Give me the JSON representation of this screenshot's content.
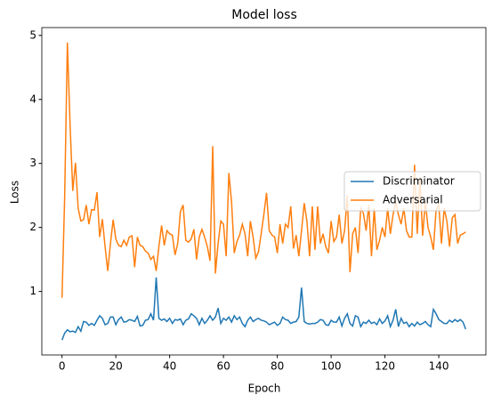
{
  "chart_data": {
    "type": "line",
    "title": "Model loss",
    "x_label": "Epoch",
    "y_label": "Loss",
    "x": [
      0,
      1,
      2,
      3,
      4,
      5,
      6,
      7,
      8,
      9,
      10,
      11,
      12,
      13,
      14,
      15,
      16,
      17,
      18,
      19,
      20,
      21,
      22,
      23,
      24,
      25,
      26,
      27,
      28,
      29,
      30,
      31,
      32,
      33,
      34,
      35,
      36,
      37,
      38,
      39,
      40,
      41,
      42,
      43,
      44,
      45,
      46,
      47,
      48,
      49,
      50,
      51,
      52,
      53,
      54,
      55,
      56,
      57,
      58,
      59,
      60,
      61,
      62,
      63,
      64,
      65,
      66,
      67,
      68,
      69,
      70,
      71,
      72,
      73,
      74,
      75,
      76,
      77,
      78,
      79,
      80,
      81,
      82,
      83,
      84,
      85,
      86,
      87,
      88,
      89,
      90,
      91,
      92,
      93,
      94,
      95,
      96,
      97,
      98,
      99,
      100,
      101,
      102,
      103,
      104,
      105,
      106,
      107,
      108,
      109,
      110,
      111,
      112,
      113,
      114,
      115,
      116,
      117,
      118,
      119,
      120,
      121,
      122,
      123,
      124,
      125,
      126,
      127,
      128,
      129,
      130,
      131,
      132,
      133,
      134,
      135,
      136,
      137,
      138,
      139,
      140,
      141,
      142,
      143,
      144,
      145,
      146,
      147,
      148,
      149,
      150
    ],
    "series": [
      {
        "name": "Discriminator",
        "color": "#1f77b4",
        "values": [
          0.24,
          0.35,
          0.4,
          0.37,
          0.38,
          0.36,
          0.45,
          0.38,
          0.53,
          0.52,
          0.47,
          0.5,
          0.47,
          0.55,
          0.62,
          0.58,
          0.48,
          0.5,
          0.6,
          0.6,
          0.48,
          0.56,
          0.6,
          0.52,
          0.53,
          0.56,
          0.55,
          0.53,
          0.61,
          0.46,
          0.47,
          0.55,
          0.56,
          0.65,
          0.55,
          1.22,
          0.58,
          0.55,
          0.57,
          0.53,
          0.58,
          0.5,
          0.56,
          0.55,
          0.57,
          0.48,
          0.55,
          0.57,
          0.65,
          0.62,
          0.58,
          0.48,
          0.58,
          0.5,
          0.55,
          0.62,
          0.55,
          0.6,
          0.74,
          0.5,
          0.58,
          0.55,
          0.6,
          0.52,
          0.62,
          0.56,
          0.6,
          0.5,
          0.45,
          0.55,
          0.6,
          0.53,
          0.56,
          0.58,
          0.55,
          0.54,
          0.52,
          0.48,
          0.5,
          0.52,
          0.47,
          0.5,
          0.6,
          0.56,
          0.55,
          0.5,
          0.52,
          0.53,
          0.6,
          1.06,
          0.53,
          0.5,
          0.49,
          0.5,
          0.5,
          0.52,
          0.56,
          0.55,
          0.48,
          0.47,
          0.55,
          0.52,
          0.52,
          0.6,
          0.46,
          0.58,
          0.65,
          0.5,
          0.46,
          0.62,
          0.6,
          0.45,
          0.52,
          0.5,
          0.55,
          0.5,
          0.52,
          0.48,
          0.57,
          0.5,
          0.54,
          0.62,
          0.45,
          0.55,
          0.72,
          0.45,
          0.58,
          0.5,
          0.52,
          0.45,
          0.5,
          0.46,
          0.52,
          0.48,
          0.5,
          0.53,
          0.48,
          0.45,
          0.72,
          0.65,
          0.56,
          0.53,
          0.5,
          0.5,
          0.55,
          0.52,
          0.56,
          0.53,
          0.56,
          0.52,
          0.41
        ]
      },
      {
        "name": "Adversarial",
        "color": "#ff7f0e",
        "values": [
          0.9,
          2.5,
          4.89,
          3.6,
          2.57,
          3.01,
          2.3,
          2.1,
          2.12,
          2.35,
          2.05,
          2.28,
          2.27,
          2.55,
          1.85,
          2.13,
          1.7,
          1.32,
          1.75,
          2.12,
          1.82,
          1.72,
          1.7,
          1.8,
          1.72,
          1.85,
          1.87,
          1.38,
          1.85,
          1.72,
          1.7,
          1.63,
          1.6,
          1.5,
          1.55,
          1.32,
          1.7,
          2.03,
          1.72,
          1.95,
          1.9,
          1.88,
          1.57,
          1.75,
          2.25,
          2.35,
          1.8,
          1.77,
          1.82,
          1.97,
          1.5,
          1.85,
          1.97,
          1.85,
          1.7,
          1.48,
          3.27,
          1.28,
          1.75,
          2.1,
          2.05,
          1.55,
          2.85,
          2.4,
          1.6,
          1.78,
          1.88,
          2.05,
          1.9,
          1.55,
          2.1,
          1.85,
          1.52,
          1.62,
          1.9,
          2.2,
          2.54,
          1.95,
          1.88,
          1.85,
          1.6,
          2.05,
          1.75,
          2.05,
          2.0,
          2.33,
          1.67,
          1.88,
          1.55,
          1.95,
          2.38,
          2.1,
          1.55,
          2.33,
          1.65,
          2.33,
          1.75,
          1.9,
          1.7,
          1.6,
          2.1,
          1.78,
          1.85,
          2.2,
          1.75,
          1.95,
          2.5,
          1.3,
          1.9,
          2.0,
          1.6,
          2.3,
          2.22,
          1.95,
          2.35,
          1.55,
          2.3,
          1.65,
          1.8,
          2.0,
          1.85,
          2.3,
          1.9,
          2.2,
          2.4,
          2.2,
          2.05,
          2.3,
          1.95,
          1.85,
          1.85,
          2.98,
          1.9,
          2.78,
          1.87,
          2.4,
          2.0,
          1.85,
          1.65,
          2.28,
          2.35,
          1.75,
          2.3,
          2.1,
          1.7,
          2.15,
          2.2,
          1.75,
          1.88,
          1.9,
          1.93
        ]
      }
    ],
    "xlim": [
      -7.5,
      157.5
    ],
    "ylim": [
      0.0075,
      5.1225
    ],
    "xticks": [
      0,
      20,
      40,
      60,
      80,
      100,
      120,
      140
    ],
    "yticks": [
      1,
      2,
      3,
      4,
      5
    ],
    "legend": "center right"
  }
}
